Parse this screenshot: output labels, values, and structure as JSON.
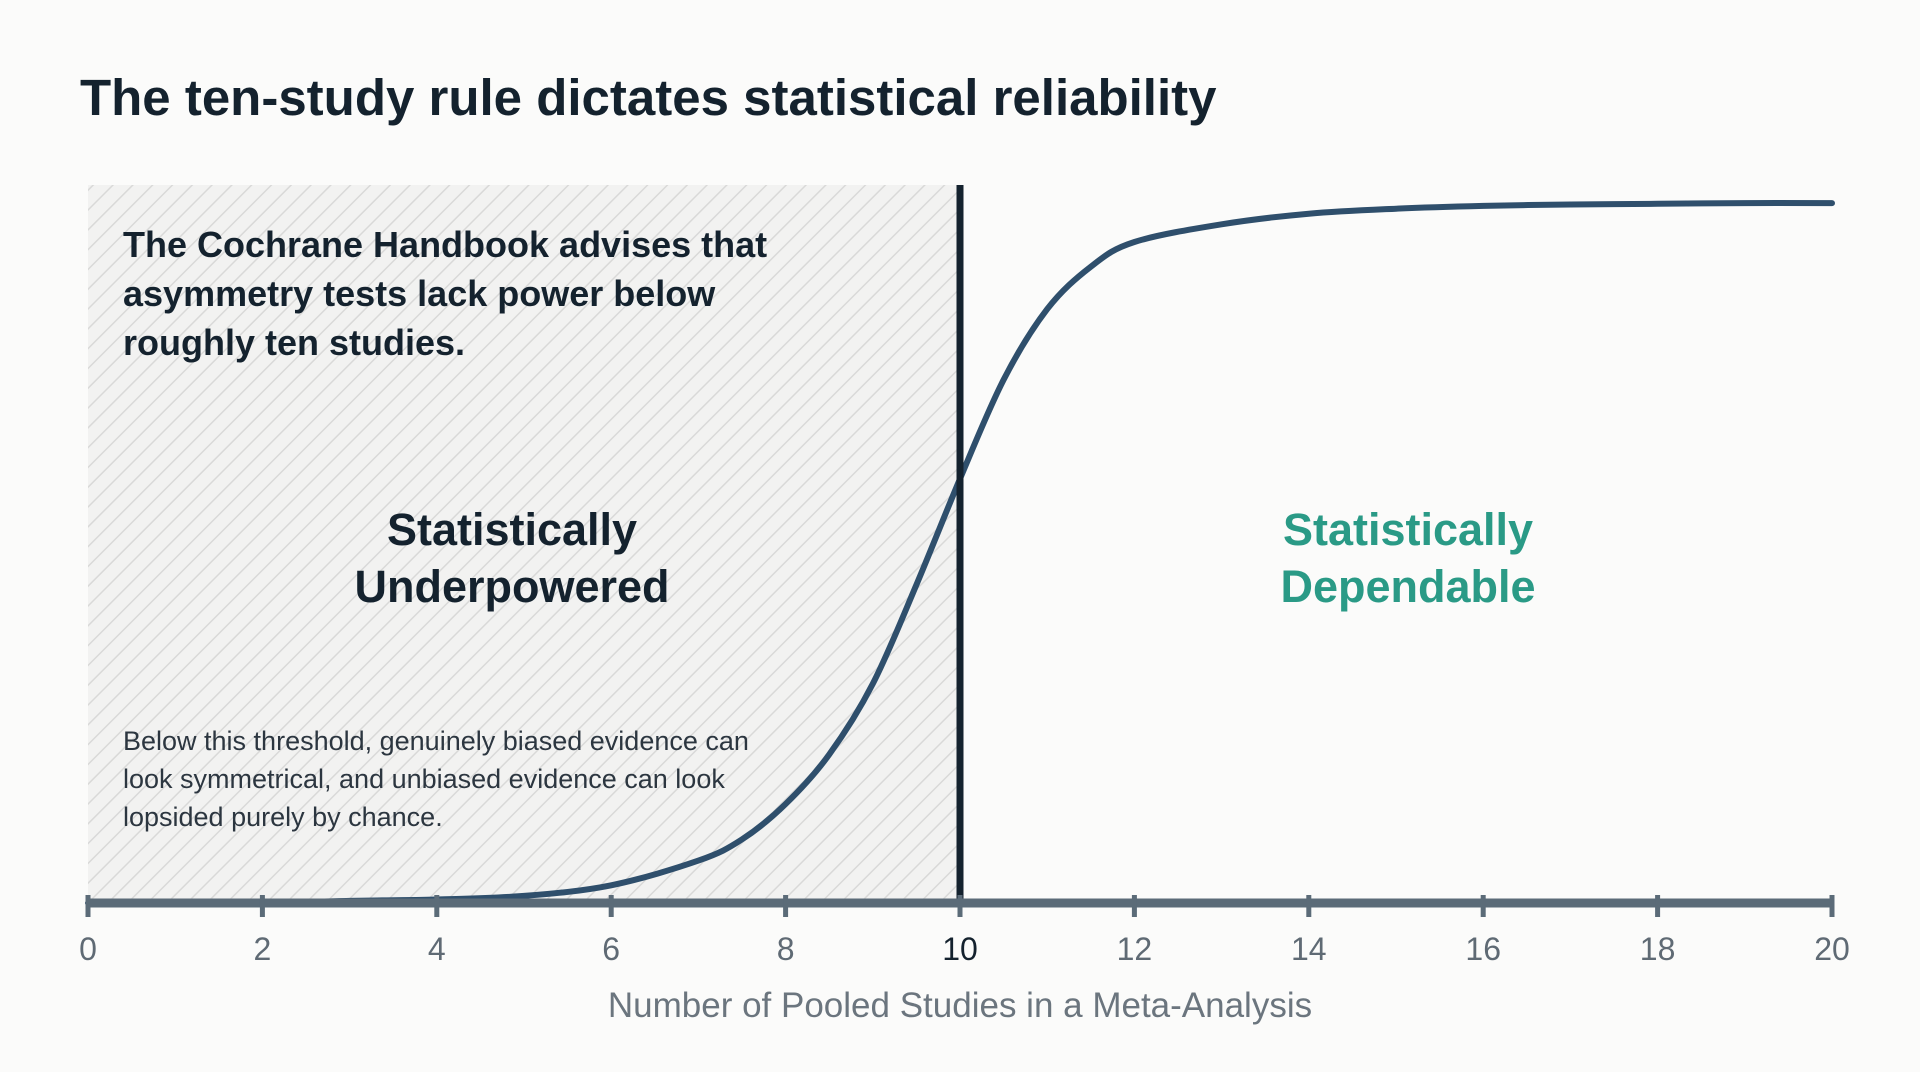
{
  "chart_data": {
    "type": "line",
    "title": "The ten-study rule dictates statistical reliability",
    "xlabel": "Number of Pooled Studies in a Meta-Analysis",
    "ylabel": "",
    "xlim": [
      0,
      20
    ],
    "ylim": [
      0,
      1
    ],
    "x_ticks": [
      "0",
      "2",
      "4",
      "6",
      "8",
      "10",
      "12",
      "14",
      "16",
      "18",
      "20"
    ],
    "threshold_x": 10,
    "series": [
      {
        "x": [
          0,
          1,
          2,
          3,
          4,
          5,
          6,
          7,
          7.5,
          8,
          8.5,
          9,
          9.5,
          10,
          10.5,
          11,
          11.5,
          12,
          13,
          14,
          15,
          16,
          17,
          18,
          19,
          20
        ],
        "values": [
          0.0,
          0.0,
          0.0,
          0.003,
          0.005,
          0.01,
          0.025,
          0.06,
          0.09,
          0.14,
          0.21,
          0.31,
          0.45,
          0.6,
          0.74,
          0.84,
          0.9,
          0.935,
          0.96,
          0.975,
          0.982,
          0.986,
          0.988,
          0.989,
          0.99,
          0.99
        ]
      }
    ],
    "grid": false,
    "colors": {
      "curve": "#2f4f6c",
      "threshold_line": "#14222e",
      "axis": "#5b6b78",
      "underpowered_label": "#14222e",
      "dependable_label": "#2a9a86",
      "hatch": "#d7d7d7"
    },
    "annotations": {
      "cochrane_note": [
        "The Cochrane Handbook advises that",
        "asymmetry tests lack power below",
        "roughly ten studies."
      ],
      "underpowered_label": [
        "Statistically",
        "Underpowered"
      ],
      "dependable_label": [
        "Statistically",
        "Dependable"
      ],
      "threshold_caption": [
        "Below this threshold, genuinely biased evidence can",
        "look symmetrical, and unbiased evidence can look",
        "lopsided purely by chance."
      ]
    }
  }
}
